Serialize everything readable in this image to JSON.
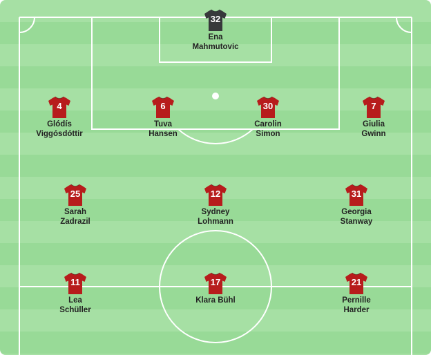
{
  "colors": {
    "outfield_shirt": "#b71c1c",
    "goalkeeper_shirt": "#37393b",
    "pitch_light": "#a6e0a4",
    "pitch_dark": "#98da97",
    "lines": "#ffffff"
  },
  "players": [
    {
      "id": "gk",
      "number": "32",
      "first": "Ena",
      "last": "Mahmutovic",
      "role": "goalkeeper",
      "col": 0.5,
      "row": 0
    },
    {
      "id": "lb",
      "number": "4",
      "first": "Glódís",
      "last": "Viggósdóttir",
      "role": "outfield",
      "col": 0.138,
      "row": 1
    },
    {
      "id": "cb1",
      "number": "6",
      "first": "Tuva",
      "last": "Hansen",
      "role": "outfield",
      "col": 0.378,
      "row": 1
    },
    {
      "id": "cb2",
      "number": "30",
      "first": "Carolin",
      "last": "Simon",
      "role": "outfield",
      "col": 0.622,
      "row": 1
    },
    {
      "id": "rb",
      "number": "7",
      "first": "Giulia",
      "last": "Gwinn",
      "role": "outfield",
      "col": 0.867,
      "row": 1
    },
    {
      "id": "lm",
      "number": "25",
      "first": "Sarah",
      "last": "Zadrazil",
      "role": "outfield",
      "col": 0.175,
      "row": 2
    },
    {
      "id": "cm",
      "number": "12",
      "first": "Sydney",
      "last": "Lohmann",
      "role": "outfield",
      "col": 0.5,
      "row": 2
    },
    {
      "id": "rm",
      "number": "31",
      "first": "Georgia",
      "last": "Stanway",
      "role": "outfield",
      "col": 0.827,
      "row": 2
    },
    {
      "id": "lf",
      "number": "11",
      "first": "Lea",
      "last": "Schüller",
      "role": "outfield",
      "col": 0.175,
      "row": 3
    },
    {
      "id": "cf",
      "number": "17",
      "first": "Klara Bühl",
      "last": "",
      "role": "outfield",
      "col": 0.5,
      "row": 3
    },
    {
      "id": "rf",
      "number": "21",
      "first": "Pernille",
      "last": "Harder",
      "role": "outfield",
      "col": 0.827,
      "row": 3
    }
  ]
}
